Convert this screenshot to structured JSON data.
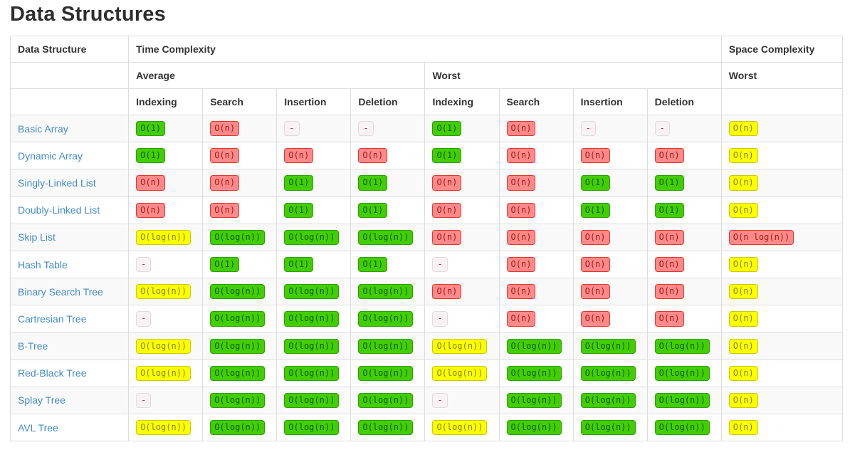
{
  "page": {
    "title": "Data Structures"
  },
  "colors": {
    "title_text": "#2e2e2e",
    "header_text": "#333333",
    "border": "#dddddd",
    "row_stripe": "#f9f9f9",
    "link": "#428bca",
    "green_bg": "#43ce02",
    "green_border": "#2e9e02",
    "green_text": "#0e5b02",
    "red_bg": "#ff8a89",
    "red_border": "#e43632",
    "red_text": "#9e1a17",
    "yellow_bg": "#fbff00",
    "yellow_border": "#cbc900",
    "yellow_text": "#878500",
    "na_bg": "#f9f2f4",
    "na_border": "#e4dadd",
    "na_text": "#c7254e"
  },
  "table": {
    "header": {
      "data_structure": "Data Structure",
      "time_complexity": "Time Complexity",
      "space_complexity": "Space Complexity",
      "average": "Average",
      "worst": "Worst",
      "space_worst": "Worst",
      "ops": [
        "Indexing",
        "Search",
        "Insertion",
        "Deletion",
        "Indexing",
        "Search",
        "Insertion",
        "Deletion"
      ]
    },
    "rows": [
      {
        "name": "Basic Array",
        "cells": [
          {
            "text": "O(1)",
            "level": "green"
          },
          {
            "text": "O(n)",
            "level": "red"
          },
          {
            "text": "-",
            "level": "na"
          },
          {
            "text": "-",
            "level": "na"
          },
          {
            "text": "O(1)",
            "level": "green"
          },
          {
            "text": "O(n)",
            "level": "red"
          },
          {
            "text": "-",
            "level": "na"
          },
          {
            "text": "-",
            "level": "na"
          },
          {
            "text": "O(n)",
            "level": "yellow"
          }
        ]
      },
      {
        "name": "Dynamic Array",
        "cells": [
          {
            "text": "O(1)",
            "level": "green"
          },
          {
            "text": "O(n)",
            "level": "red"
          },
          {
            "text": "O(n)",
            "level": "red"
          },
          {
            "text": "O(n)",
            "level": "red"
          },
          {
            "text": "O(1)",
            "level": "green"
          },
          {
            "text": "O(n)",
            "level": "red"
          },
          {
            "text": "O(n)",
            "level": "red"
          },
          {
            "text": "O(n)",
            "level": "red"
          },
          {
            "text": "O(n)",
            "level": "yellow"
          }
        ]
      },
      {
        "name": "Singly-Linked List",
        "cells": [
          {
            "text": "O(n)",
            "level": "red"
          },
          {
            "text": "O(n)",
            "level": "red"
          },
          {
            "text": "O(1)",
            "level": "green"
          },
          {
            "text": "O(1)",
            "level": "green"
          },
          {
            "text": "O(n)",
            "level": "red"
          },
          {
            "text": "O(n)",
            "level": "red"
          },
          {
            "text": "O(1)",
            "level": "green"
          },
          {
            "text": "O(1)",
            "level": "green"
          },
          {
            "text": "O(n)",
            "level": "yellow"
          }
        ]
      },
      {
        "name": "Doubly-Linked List",
        "cells": [
          {
            "text": "O(n)",
            "level": "red"
          },
          {
            "text": "O(n)",
            "level": "red"
          },
          {
            "text": "O(1)",
            "level": "green"
          },
          {
            "text": "O(1)",
            "level": "green"
          },
          {
            "text": "O(n)",
            "level": "red"
          },
          {
            "text": "O(n)",
            "level": "red"
          },
          {
            "text": "O(1)",
            "level": "green"
          },
          {
            "text": "O(1)",
            "level": "green"
          },
          {
            "text": "O(n)",
            "level": "yellow"
          }
        ]
      },
      {
        "name": "Skip List",
        "cells": [
          {
            "text": "O(log(n))",
            "level": "yellow"
          },
          {
            "text": "O(log(n))",
            "level": "green"
          },
          {
            "text": "O(log(n))",
            "level": "green"
          },
          {
            "text": "O(log(n))",
            "level": "green"
          },
          {
            "text": "O(n)",
            "level": "red"
          },
          {
            "text": "O(n)",
            "level": "red"
          },
          {
            "text": "O(n)",
            "level": "red"
          },
          {
            "text": "O(n)",
            "level": "red"
          },
          {
            "text": "O(n log(n))",
            "level": "red"
          }
        ]
      },
      {
        "name": "Hash Table",
        "cells": [
          {
            "text": "-",
            "level": "na"
          },
          {
            "text": "O(1)",
            "level": "green"
          },
          {
            "text": "O(1)",
            "level": "green"
          },
          {
            "text": "O(1)",
            "level": "green"
          },
          {
            "text": "-",
            "level": "na"
          },
          {
            "text": "O(n)",
            "level": "red"
          },
          {
            "text": "O(n)",
            "level": "red"
          },
          {
            "text": "O(n)",
            "level": "red"
          },
          {
            "text": "O(n)",
            "level": "yellow"
          }
        ]
      },
      {
        "name": "Binary Search Tree",
        "cells": [
          {
            "text": "O(log(n))",
            "level": "yellow"
          },
          {
            "text": "O(log(n))",
            "level": "green"
          },
          {
            "text": "O(log(n))",
            "level": "green"
          },
          {
            "text": "O(log(n))",
            "level": "green"
          },
          {
            "text": "O(n)",
            "level": "red"
          },
          {
            "text": "O(n)",
            "level": "red"
          },
          {
            "text": "O(n)",
            "level": "red"
          },
          {
            "text": "O(n)",
            "level": "red"
          },
          {
            "text": "O(n)",
            "level": "yellow"
          }
        ]
      },
      {
        "name": "Cartresian Tree",
        "cells": [
          {
            "text": "-",
            "level": "na"
          },
          {
            "text": "O(log(n))",
            "level": "green"
          },
          {
            "text": "O(log(n))",
            "level": "green"
          },
          {
            "text": "O(log(n))",
            "level": "green"
          },
          {
            "text": "-",
            "level": "na"
          },
          {
            "text": "O(n)",
            "level": "red"
          },
          {
            "text": "O(n)",
            "level": "red"
          },
          {
            "text": "O(n)",
            "level": "red"
          },
          {
            "text": "O(n)",
            "level": "yellow"
          }
        ]
      },
      {
        "name": "B-Tree",
        "cells": [
          {
            "text": "O(log(n))",
            "level": "yellow"
          },
          {
            "text": "O(log(n))",
            "level": "green"
          },
          {
            "text": "O(log(n))",
            "level": "green"
          },
          {
            "text": "O(log(n))",
            "level": "green"
          },
          {
            "text": "O(log(n))",
            "level": "yellow"
          },
          {
            "text": "O(log(n))",
            "level": "green"
          },
          {
            "text": "O(log(n))",
            "level": "green"
          },
          {
            "text": "O(log(n))",
            "level": "green"
          },
          {
            "text": "O(n)",
            "level": "yellow"
          }
        ]
      },
      {
        "name": "Red-Black Tree",
        "cells": [
          {
            "text": "O(log(n))",
            "level": "yellow"
          },
          {
            "text": "O(log(n))",
            "level": "green"
          },
          {
            "text": "O(log(n))",
            "level": "green"
          },
          {
            "text": "O(log(n))",
            "level": "green"
          },
          {
            "text": "O(log(n))",
            "level": "yellow"
          },
          {
            "text": "O(log(n))",
            "level": "green"
          },
          {
            "text": "O(log(n))",
            "level": "green"
          },
          {
            "text": "O(log(n))",
            "level": "green"
          },
          {
            "text": "O(n)",
            "level": "yellow"
          }
        ]
      },
      {
        "name": "Splay Tree",
        "cells": [
          {
            "text": "-",
            "level": "na"
          },
          {
            "text": "O(log(n))",
            "level": "green"
          },
          {
            "text": "O(log(n))",
            "level": "green"
          },
          {
            "text": "O(log(n))",
            "level": "green"
          },
          {
            "text": "-",
            "level": "na"
          },
          {
            "text": "O(log(n))",
            "level": "green"
          },
          {
            "text": "O(log(n))",
            "level": "green"
          },
          {
            "text": "O(log(n))",
            "level": "green"
          },
          {
            "text": "O(n)",
            "level": "yellow"
          }
        ]
      },
      {
        "name": "AVL Tree",
        "cells": [
          {
            "text": "O(log(n))",
            "level": "yellow"
          },
          {
            "text": "O(log(n))",
            "level": "green"
          },
          {
            "text": "O(log(n))",
            "level": "green"
          },
          {
            "text": "O(log(n))",
            "level": "green"
          },
          {
            "text": "O(log(n))",
            "level": "yellow"
          },
          {
            "text": "O(log(n))",
            "level": "green"
          },
          {
            "text": "O(log(n))",
            "level": "green"
          },
          {
            "text": "O(log(n))",
            "level": "green"
          },
          {
            "text": "O(n)",
            "level": "yellow"
          }
        ]
      }
    ]
  }
}
